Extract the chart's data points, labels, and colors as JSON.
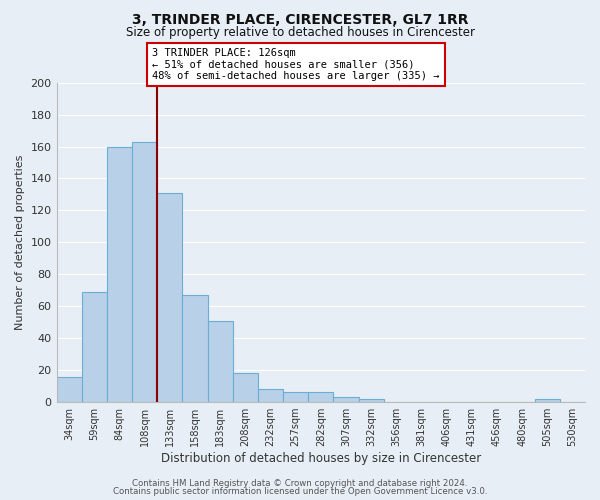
{
  "title": "3, TRINDER PLACE, CIRENCESTER, GL7 1RR",
  "subtitle": "Size of property relative to detached houses in Cirencester",
  "xlabel": "Distribution of detached houses by size in Cirencester",
  "ylabel": "Number of detached properties",
  "bar_labels": [
    "34sqm",
    "59sqm",
    "84sqm",
    "108sqm",
    "133sqm",
    "158sqm",
    "183sqm",
    "208sqm",
    "232sqm",
    "257sqm",
    "282sqm",
    "307sqm",
    "332sqm",
    "356sqm",
    "381sqm",
    "406sqm",
    "431sqm",
    "456sqm",
    "480sqm",
    "505sqm",
    "530sqm"
  ],
  "bar_values": [
    16,
    69,
    160,
    163,
    131,
    67,
    51,
    18,
    8,
    6,
    6,
    3,
    2,
    0,
    0,
    0,
    0,
    0,
    0,
    2,
    0
  ],
  "bar_color": "#b8d0e8",
  "bar_edge_color": "#6aaed6",
  "ylim": [
    0,
    200
  ],
  "yticks": [
    0,
    20,
    40,
    60,
    80,
    100,
    120,
    140,
    160,
    180,
    200
  ],
  "marker_bin_index": 3,
  "marker_label": "3 TRINDER PLACE: 126sqm",
  "marker_line_color": "#8b0000",
  "annotation_smaller": "← 51% of detached houses are smaller (356)",
  "annotation_larger": "48% of semi-detached houses are larger (335) →",
  "annotation_box_facecolor": "#ffffff",
  "annotation_box_edgecolor": "#cc0000",
  "footer_line1": "Contains HM Land Registry data © Crown copyright and database right 2024.",
  "footer_line2": "Contains public sector information licensed under the Open Government Licence v3.0.",
  "bg_color": "#e8eef5",
  "plot_bg_color": "#e8eef5",
  "grid_color": "#ffffff"
}
